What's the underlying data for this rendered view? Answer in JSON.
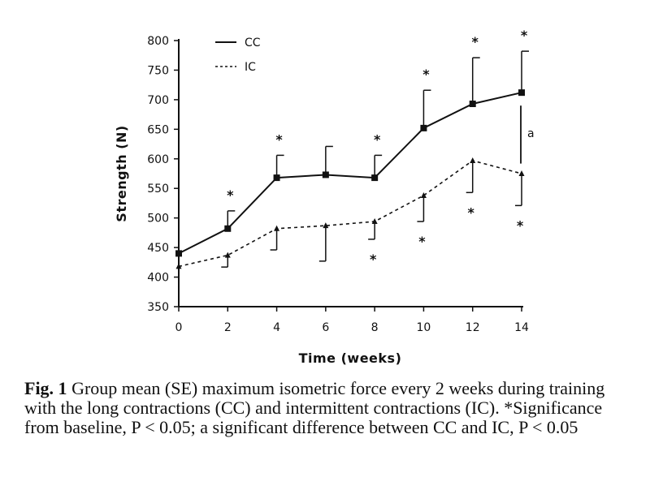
{
  "chart_data": {
    "type": "line",
    "title": "",
    "xlabel": "Time (weeks)",
    "ylabel": "Strength (N)",
    "xlim": [
      0,
      14
    ],
    "ylim": [
      350,
      800
    ],
    "x_ticks": [
      0,
      2,
      4,
      6,
      8,
      10,
      12,
      14
    ],
    "y_ticks": [
      350,
      400,
      450,
      500,
      550,
      600,
      650,
      700,
      750,
      800
    ],
    "grid": false,
    "legend_position": "top-left",
    "series": [
      {
        "name": "CC",
        "line_style": "solid",
        "marker": "square",
        "x": [
          0,
          2,
          4,
          6,
          8,
          10,
          12,
          14
        ],
        "values": [
          440,
          482,
          568,
          573,
          568,
          652,
          693,
          712
        ],
        "error_upper": [
          0,
          30,
          38,
          48,
          38,
          64,
          78,
          70
        ],
        "significant_from_baseline": [
          false,
          true,
          true,
          false,
          true,
          true,
          true,
          true
        ]
      },
      {
        "name": "IC",
        "line_style": "dashed",
        "marker": "triangle",
        "x": [
          0,
          2,
          4,
          6,
          8,
          10,
          12,
          14
        ],
        "values": [
          418,
          437,
          482,
          487,
          494,
          538,
          597,
          575
        ],
        "error_lower": [
          0,
          20,
          36,
          60,
          30,
          44,
          54,
          54
        ],
        "significant_from_baseline": [
          false,
          false,
          false,
          false,
          true,
          true,
          true,
          true
        ]
      }
    ],
    "annotations": [
      {
        "text": "a",
        "x": 14,
        "meaning": "significant difference between CC and IC"
      }
    ],
    "significance_symbol": "*"
  },
  "caption": {
    "label": "Fig. 1",
    "text": "Group mean (SE) maximum isometric force every 2 weeks during training with the long contractions (CC) and intermittent contractions (IC). *Significance from baseline, P < 0.05; a significant difference between CC and IC, P < 0.05"
  }
}
